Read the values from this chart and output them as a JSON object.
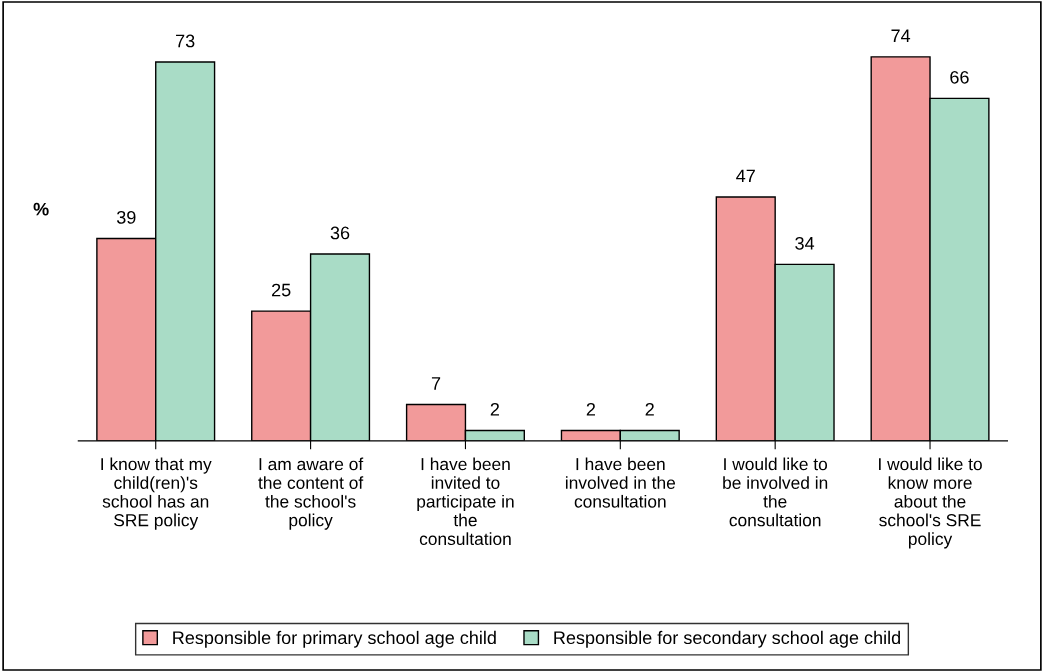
{
  "chart_data": {
    "type": "bar",
    "ylabel": "%",
    "categories": [
      "I know that my\nchild(ren)'s\nschool has an\nSRE policy",
      "I am aware of\nthe content of\nthe school's\npolicy",
      "I have been\ninvited to\nparticipate in\nthe\nconsultation",
      "I have been\ninvolved in the\nconsultation",
      "I would like to\nbe involved in\nthe\nconsultation",
      "I would like to\nknow more\nabout the\nschool's SRE\npolicy"
    ],
    "series": [
      {
        "name": "Responsible for primary school age child",
        "color": "#f29a9a",
        "values": [
          39,
          25,
          7,
          2,
          47,
          74
        ]
      },
      {
        "name": "Responsible for secondary school age child",
        "color": "#a9dcc6",
        "values": [
          73,
          36,
          2,
          2,
          34,
          66
        ]
      }
    ],
    "data_labels": true,
    "grid": false,
    "legend": "bottom"
  }
}
